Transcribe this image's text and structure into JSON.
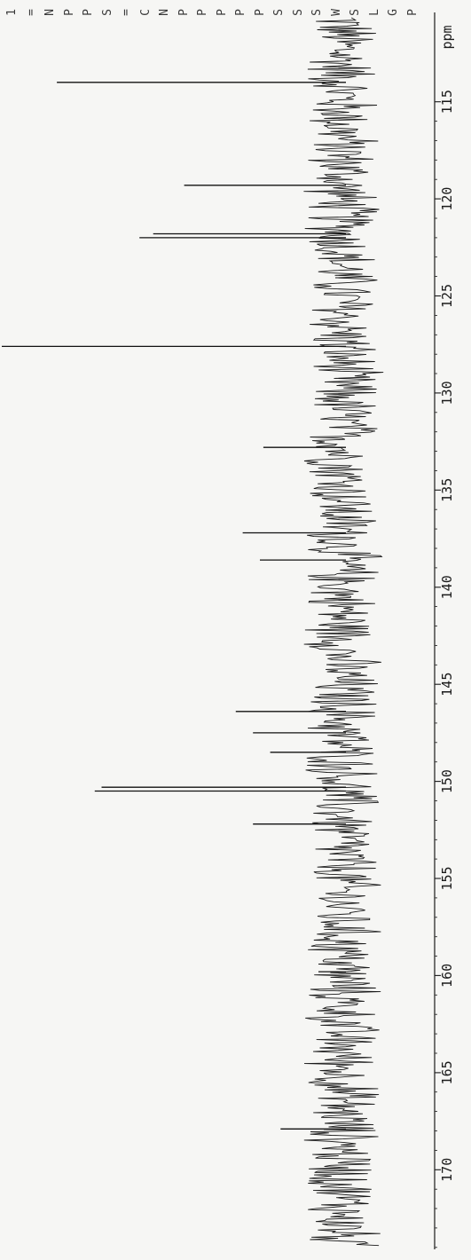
{
  "chart_data": {
    "type": "line",
    "x_unit": "ppm",
    "xlim": [
      110.4,
      174.1
    ],
    "ticks": [
      115,
      120,
      125,
      130,
      135,
      140,
      145,
      150,
      155,
      160,
      165,
      170
    ],
    "tick_labels": [
      "115",
      "120",
      "125",
      "130",
      "135",
      "140",
      "145",
      "150",
      "155",
      "160",
      "165",
      "170"
    ],
    "peaks": [
      {
        "x": 114.0,
        "intensity": 0.84
      },
      {
        "x": 119.3,
        "intensity": 0.47
      },
      {
        "x": 121.8,
        "intensity": 0.56
      },
      {
        "x": 122.0,
        "intensity": 0.6
      },
      {
        "x": 127.6,
        "intensity": 1.0
      },
      {
        "x": 132.8,
        "intensity": 0.24
      },
      {
        "x": 137.2,
        "intensity": 0.3
      },
      {
        "x": 138.6,
        "intensity": 0.25
      },
      {
        "x": 146.4,
        "intensity": 0.32
      },
      {
        "x": 147.5,
        "intensity": 0.27
      },
      {
        "x": 148.5,
        "intensity": 0.22
      },
      {
        "x": 150.3,
        "intensity": 0.71
      },
      {
        "x": 150.5,
        "intensity": 0.73
      },
      {
        "x": 152.2,
        "intensity": 0.27
      },
      {
        "x": 159.8,
        "intensity": 0.08
      },
      {
        "x": 167.9,
        "intensity": 0.19
      }
    ],
    "noise_level": 0.1
  },
  "axis_unit_label": "ppm",
  "edge_letters": [
    "1",
    "=",
    "N",
    "P",
    "P",
    "S",
    "=",
    "C",
    "N",
    "P",
    "P",
    "P",
    "P",
    "P",
    "S",
    "S",
    "S",
    "W",
    "S",
    "L",
    "G",
    "P"
  ]
}
